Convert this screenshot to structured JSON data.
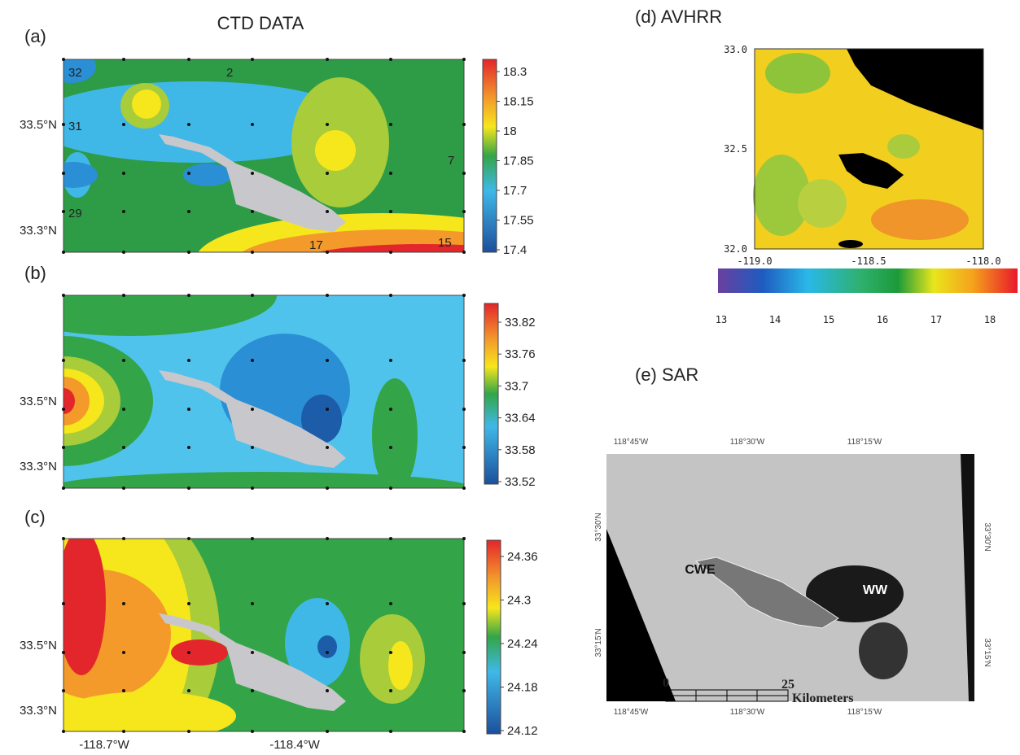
{
  "title": "CTD DATA",
  "panels": [
    {
      "label": "(a)",
      "lat_labels": [
        "33.5°N",
        "33.3°N"
      ],
      "station_labels": [
        "32",
        "2",
        "31",
        "7",
        "29",
        "17",
        "15"
      ],
      "colorbar": [
        "18.3",
        "18.15",
        "18",
        "17.85",
        "17.7",
        "17.55",
        "17.4"
      ]
    },
    {
      "label": "(b)",
      "lat_labels": [
        "33.5°N",
        "33.3°N"
      ],
      "colorbar": [
        "33.82",
        "33.76",
        "33.7",
        "33.64",
        "33.58",
        "33.52"
      ]
    },
    {
      "label": "(c)",
      "lat_labels": [
        "33.5°N",
        "33.3°N"
      ],
      "colorbar": [
        "24.36",
        "24.3",
        "24.24",
        "24.18",
        "24.12"
      ]
    }
  ],
  "lon_labels": [
    "-118.7°W",
    "-118.4°W"
  ],
  "avhrr": {
    "label": "(d) AVHRR",
    "yticks": [
      "33.0",
      "32.5",
      "32.0"
    ],
    "xticks": [
      "-119.0",
      "-118.5",
      "-118.0"
    ],
    "colorbar": [
      "13",
      "14",
      "15",
      "16",
      "17",
      "18"
    ]
  },
  "sar": {
    "label": "(e) SAR",
    "top_lon": [
      "118°45'W",
      "118°30'W",
      "118°15'W"
    ],
    "bottom_lon": [
      "118°45'W",
      "118°30'W",
      "118°15'W"
    ],
    "left_lat": [
      "33°30'N",
      "33°15'N"
    ],
    "right_lat": [
      "33°30'N",
      "33°15'N"
    ],
    "annotations": [
      "CWE",
      "WW"
    ],
    "scale": [
      "0",
      "25",
      "Kilometers"
    ]
  }
}
